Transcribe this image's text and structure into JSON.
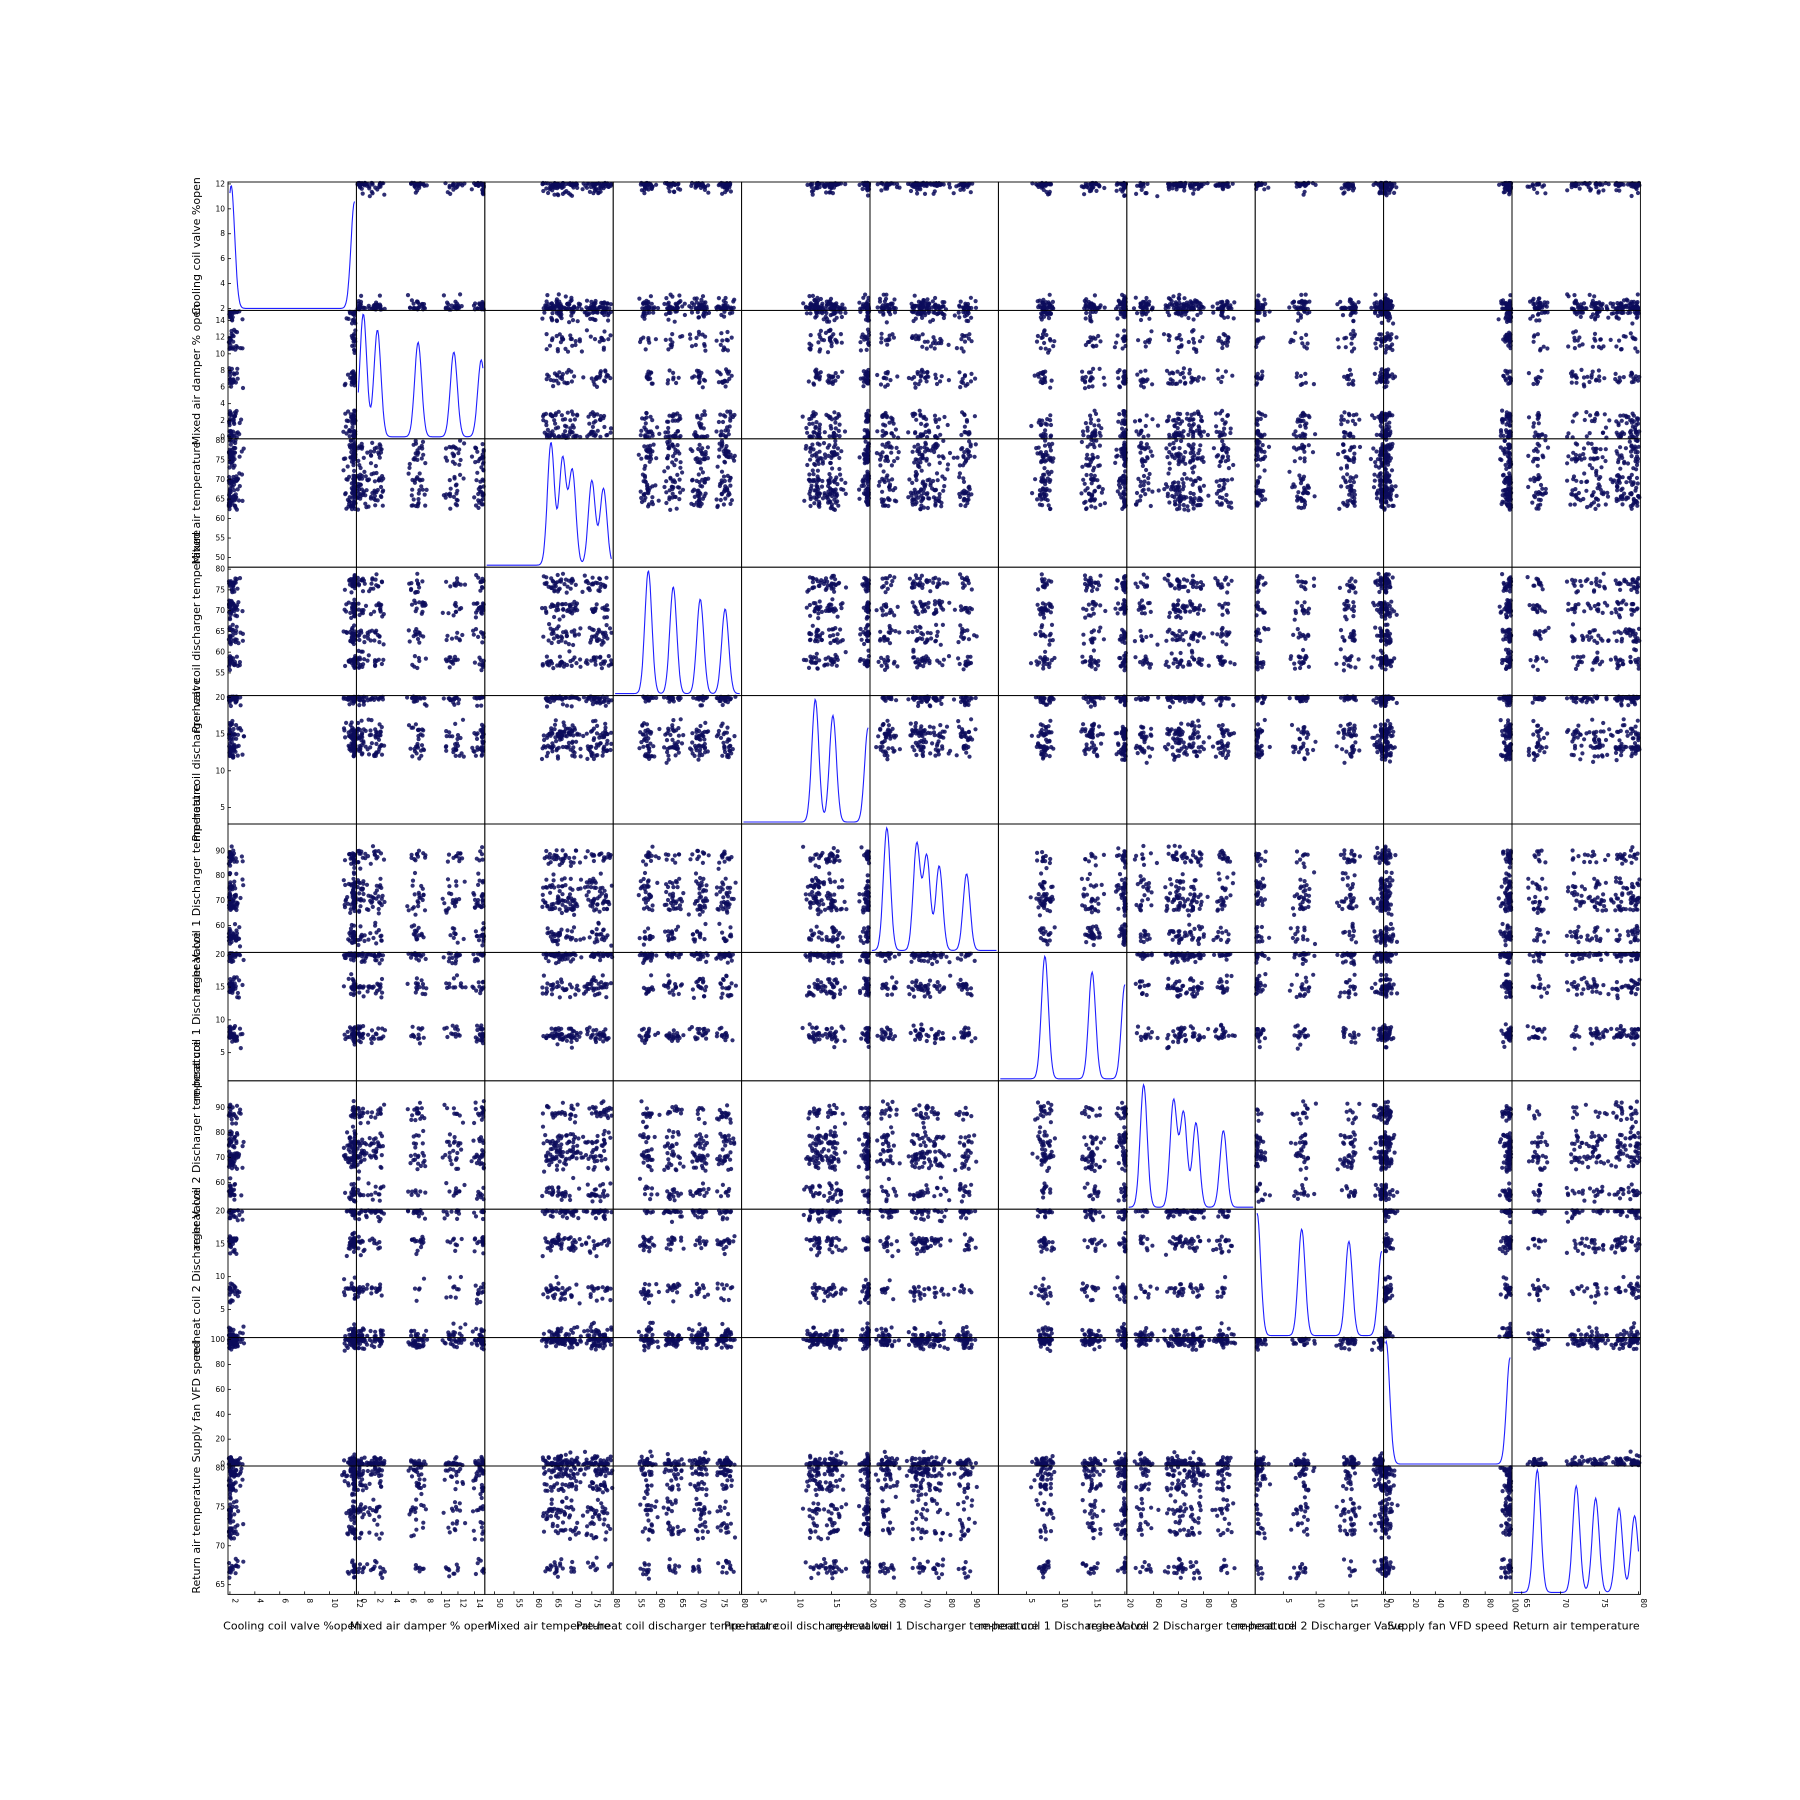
{
  "chart_data": {
    "type": "scatter",
    "subtype": "scatter-matrix",
    "diagonal": "kde",
    "grid": false,
    "colors": {
      "point": "#0c0c5c",
      "kde": "#1f1fff",
      "frame": "#000000"
    },
    "variables": [
      {
        "name": "Cooling coil valve %open",
        "range": [
          2,
          12
        ],
        "ticks": [
          2,
          4,
          6,
          8,
          10,
          12
        ]
      },
      {
        "name": "Mixed air damper % open",
        "range": [
          0,
          15
        ],
        "ticks": [
          0,
          2,
          4,
          6,
          8,
          10,
          12,
          14
        ]
      },
      {
        "name": "Mixed air temperature",
        "range": [
          48,
          80
        ],
        "ticks": [
          50,
          55,
          60,
          65,
          70,
          75,
          80
        ]
      },
      {
        "name": "Pre-heat coil discharger temperature",
        "range": [
          50,
          80
        ],
        "ticks": [
          55,
          60,
          65,
          70,
          75,
          80
        ]
      },
      {
        "name": "Pre-heat coil discharger valve",
        "range": [
          3,
          20
        ],
        "ticks": [
          5,
          10,
          15,
          20
        ]
      },
      {
        "name": "re-heat coil 1 Discharger temperature",
        "range": [
          50,
          100
        ],
        "ticks": [
          60,
          70,
          80,
          90
        ]
      },
      {
        "name": "re-heat coil 1 Discharger Valve",
        "range": [
          1,
          20
        ],
        "ticks": [
          5,
          10,
          15,
          20
        ]
      },
      {
        "name": "re-heat coil 2 Discharger temperature",
        "range": [
          50,
          100
        ],
        "ticks": [
          60,
          70,
          80,
          90
        ]
      },
      {
        "name": "re-heat coil 2 Discharger Valve",
        "range": [
          1,
          20
        ],
        "ticks": [
          5,
          10,
          15,
          20
        ]
      },
      {
        "name": "Supply fan VFD speed",
        "range": [
          0,
          100
        ],
        "ticks": [
          0,
          20,
          40,
          60,
          80,
          100
        ]
      },
      {
        "name": "Return air temperature",
        "range": [
          64,
          80
        ],
        "ticks": [
          65,
          70,
          75,
          80
        ]
      }
    ],
    "y_tick_labels": [
      [
        "2",
        "4",
        "6",
        "8",
        "10",
        "12"
      ],
      [
        "0",
        "2",
        "4",
        "6",
        "8",
        "10",
        "12",
        "14"
      ],
      [
        "50",
        "55",
        "60",
        "65",
        "70",
        "75",
        "80"
      ],
      [
        "55",
        "60",
        "65",
        "70",
        "75",
        "80"
      ],
      [
        "5",
        "10",
        "15",
        "20"
      ],
      [
        "60",
        "70",
        "80",
        "90"
      ],
      [
        "5",
        "10",
        "15",
        "20"
      ],
      [
        "60",
        "70",
        "80",
        "90"
      ],
      [
        "5",
        "10",
        "15",
        "20"
      ],
      [
        "0",
        "20",
        "40",
        "60",
        "80",
        "100"
      ],
      [
        "65",
        "70",
        "75",
        "80"
      ]
    ],
    "x_tick_labels": [
      [
        "2",
        "4",
        "6",
        "8",
        "10",
        "12"
      ],
      [
        "0",
        "2",
        "4",
        "6",
        "8",
        "10",
        "12",
        "14"
      ],
      [
        "50",
        "55",
        "60",
        "65",
        "70",
        "75",
        "80"
      ],
      [
        "55",
        "60",
        "65",
        "70",
        "75",
        "80"
      ],
      [
        "5",
        "10",
        "15",
        "20"
      ],
      [
        "60",
        "70",
        "80",
        "90"
      ],
      [
        "5",
        "10",
        "15",
        "20"
      ],
      [
        "60",
        "70",
        "80",
        "90"
      ],
      [
        "5",
        "10",
        "15",
        "20"
      ],
      [
        "0",
        "20",
        "40",
        "60",
        "80",
        "100"
      ],
      [
        "65",
        "70",
        "75",
        "80"
      ]
    ],
    "kde_peaks": [
      [
        2.1,
        12.0
      ],
      [
        0.6,
        2.3,
        7.2,
        11.5,
        14.8
      ],
      [
        64.5,
        67.5,
        70.0,
        75.0,
        78.0
      ],
      [
        58.0,
        64.0,
        70.5,
        76.5
      ],
      [
        12.8,
        15.2,
        20.0
      ],
      [
        56.0,
        68.0,
        72.0,
        77.0,
        88.0
      ],
      [
        7.8,
        15.0,
        20.0
      ],
      [
        56.0,
        68.0,
        72.0,
        77.0,
        88.0
      ],
      [
        1.0,
        7.8,
        15.0,
        20.0
      ],
      [
        0.5,
        100.0
      ],
      [
        67.0,
        72.0,
        74.5,
        77.5,
        79.5
      ]
    ]
  }
}
